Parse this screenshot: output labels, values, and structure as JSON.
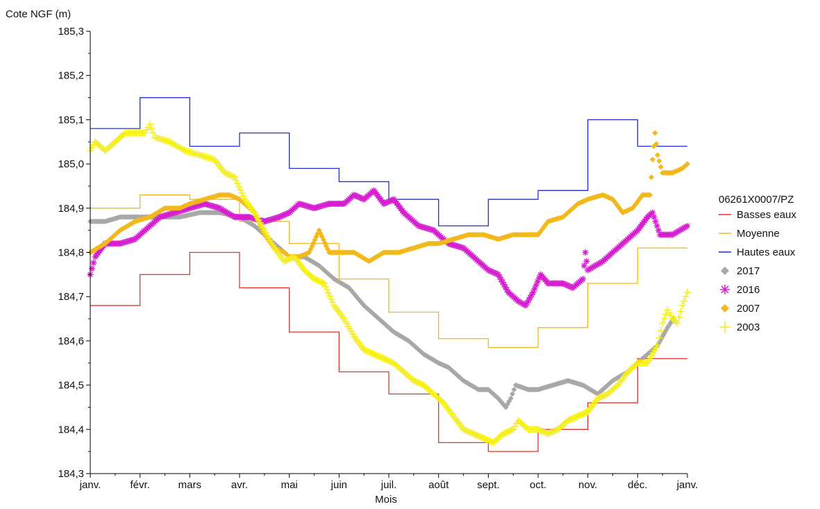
{
  "chart_data": {
    "type": "line",
    "ylabel": "Cote NGF (m)",
    "xlabel": "Mois",
    "ylim": [
      184.3,
      185.3
    ],
    "yticks": [
      184.3,
      184.4,
      184.5,
      184.6,
      184.7,
      184.8,
      184.9,
      185.0,
      185.1,
      185.2,
      185.3
    ],
    "ytick_labels": [
      "184,3",
      "184,4",
      "184,5",
      "184,6",
      "184,7",
      "184,8",
      "184,9",
      "185,0",
      "185,1",
      "185,2",
      "185,3"
    ],
    "xlim": [
      0,
      12
    ],
    "x_unit": "month",
    "xtick_labels": [
      "janv.",
      "févr.",
      "mars",
      "avr.",
      "mai",
      "juin",
      "juil.",
      "août",
      "sept.",
      "oct.",
      "nov.",
      "déc.",
      "janv."
    ],
    "grid": false,
    "legend_title": "06261X0007/PZ",
    "legend_position": "right",
    "series": [
      {
        "name": "Basses eaux",
        "kind": "step",
        "color": "#e8322a",
        "values": [
          184.68,
          184.75,
          184.8,
          184.72,
          184.62,
          184.53,
          184.48,
          184.37,
          184.35,
          184.4,
          184.46,
          184.56
        ]
      },
      {
        "name": "Moyenne",
        "kind": "step",
        "color": "#f0b81c",
        "values": [
          184.9,
          184.93,
          184.92,
          184.87,
          184.82,
          184.74,
          184.665,
          184.605,
          184.585,
          184.63,
          184.73,
          184.81
        ]
      },
      {
        "name": "Hautes eaux",
        "kind": "step",
        "color": "#1f2fd0",
        "values": [
          185.08,
          185.15,
          185.04,
          185.07,
          184.99,
          184.96,
          184.92,
          184.86,
          184.92,
          184.94,
          185.1,
          185.04
        ]
      },
      {
        "name": "2017",
        "kind": "marker",
        "marker": "diamond",
        "color": "#a8a8a8",
        "points": [
          [
            0.0,
            184.87
          ],
          [
            0.3,
            184.87
          ],
          [
            0.6,
            184.88
          ],
          [
            1.0,
            184.88
          ],
          [
            1.4,
            184.88
          ],
          [
            1.8,
            184.88
          ],
          [
            2.2,
            184.89
          ],
          [
            2.6,
            184.89
          ],
          [
            3.0,
            184.88
          ],
          [
            3.3,
            184.86
          ],
          [
            3.6,
            184.83
          ],
          [
            3.9,
            184.8
          ],
          [
            4.0,
            184.79
          ],
          [
            4.3,
            184.79
          ],
          [
            4.6,
            184.77
          ],
          [
            4.9,
            184.74
          ],
          [
            5.2,
            184.72
          ],
          [
            5.5,
            184.68
          ],
          [
            5.8,
            184.65
          ],
          [
            6.1,
            184.62
          ],
          [
            6.4,
            184.6
          ],
          [
            6.7,
            184.57
          ],
          [
            7.0,
            184.55
          ],
          [
            7.2,
            184.54
          ],
          [
            7.5,
            184.51
          ],
          [
            7.8,
            184.49
          ],
          [
            8.0,
            184.49
          ],
          [
            8.2,
            184.47
          ],
          [
            8.35,
            184.45
          ],
          [
            8.45,
            184.47
          ],
          [
            8.55,
            184.5
          ],
          [
            8.8,
            184.49
          ],
          [
            9.0,
            184.49
          ],
          [
            9.3,
            184.5
          ],
          [
            9.6,
            184.51
          ],
          [
            9.9,
            184.5
          ],
          [
            10.2,
            184.48
          ],
          [
            10.5,
            184.51
          ],
          [
            10.8,
            184.53
          ],
          [
            11.0,
            184.55
          ],
          [
            11.2,
            184.57
          ],
          [
            11.4,
            184.59
          ],
          [
            11.6,
            184.63
          ],
          [
            11.72,
            184.65
          ]
        ]
      },
      {
        "name": "2016",
        "kind": "marker",
        "marker": "asterisk",
        "color": "#d61fd0",
        "points": [
          [
            0.0,
            184.75
          ],
          [
            0.1,
            184.79
          ],
          [
            0.3,
            184.82
          ],
          [
            0.6,
            184.82
          ],
          [
            0.9,
            184.83
          ],
          [
            1.1,
            184.85
          ],
          [
            1.4,
            184.88
          ],
          [
            1.7,
            184.89
          ],
          [
            2.0,
            184.9
          ],
          [
            2.3,
            184.91
          ],
          [
            2.6,
            184.9
          ],
          [
            2.9,
            184.88
          ],
          [
            3.2,
            184.88
          ],
          [
            3.5,
            184.87
          ],
          [
            3.8,
            184.88
          ],
          [
            4.0,
            184.89
          ],
          [
            4.2,
            184.91
          ],
          [
            4.5,
            184.9
          ],
          [
            4.8,
            184.91
          ],
          [
            5.1,
            184.91
          ],
          [
            5.3,
            184.93
          ],
          [
            5.5,
            184.92
          ],
          [
            5.7,
            184.94
          ],
          [
            5.9,
            184.91
          ],
          [
            6.1,
            184.92
          ],
          [
            6.3,
            184.89
          ],
          [
            6.6,
            184.86
          ],
          [
            6.9,
            184.85
          ],
          [
            7.2,
            184.82
          ],
          [
            7.5,
            184.81
          ],
          [
            7.8,
            184.78
          ],
          [
            8.0,
            184.76
          ],
          [
            8.2,
            184.75
          ],
          [
            8.4,
            184.71
          ],
          [
            8.6,
            184.69
          ],
          [
            8.75,
            184.68
          ],
          [
            8.9,
            184.71
          ],
          [
            9.05,
            184.75
          ],
          [
            9.2,
            184.73
          ],
          [
            9.5,
            184.73
          ],
          [
            9.7,
            184.72
          ],
          [
            9.9,
            184.74
          ],
          [
            9.95,
            184.8
          ],
          [
            10.0,
            184.76
          ],
          [
            10.3,
            184.78
          ],
          [
            10.6,
            184.81
          ],
          [
            10.8,
            184.83
          ],
          [
            11.0,
            184.85
          ],
          [
            11.2,
            184.88
          ],
          [
            11.3,
            184.89
          ],
          [
            11.45,
            184.84
          ],
          [
            11.7,
            184.84
          ],
          [
            12.0,
            184.86
          ]
        ]
      },
      {
        "name": "2007",
        "kind": "marker",
        "marker": "diamond",
        "color": "#f2b81c",
        "points": [
          [
            0.0,
            184.8
          ],
          [
            0.3,
            184.82
          ],
          [
            0.6,
            184.85
          ],
          [
            0.9,
            184.87
          ],
          [
            1.2,
            184.88
          ],
          [
            1.5,
            184.9
          ],
          [
            1.8,
            184.9
          ],
          [
            2.0,
            184.91
          ],
          [
            2.3,
            184.92
          ],
          [
            2.6,
            184.93
          ],
          [
            2.8,
            184.93
          ],
          [
            3.0,
            184.92
          ],
          [
            3.3,
            184.89
          ],
          [
            3.5,
            184.84
          ],
          [
            3.7,
            184.81
          ],
          [
            3.9,
            184.8
          ],
          [
            4.0,
            184.79
          ],
          [
            4.2,
            184.79
          ],
          [
            4.4,
            184.8
          ],
          [
            4.6,
            184.85
          ],
          [
            4.8,
            184.8
          ],
          [
            5.0,
            184.8
          ],
          [
            5.3,
            184.8
          ],
          [
            5.6,
            184.78
          ],
          [
            5.9,
            184.8
          ],
          [
            6.2,
            184.8
          ],
          [
            6.5,
            184.81
          ],
          [
            6.8,
            184.82
          ],
          [
            7.0,
            184.82
          ],
          [
            7.3,
            184.83
          ],
          [
            7.6,
            184.84
          ],
          [
            7.9,
            184.84
          ],
          [
            8.2,
            184.83
          ],
          [
            8.5,
            184.84
          ],
          [
            8.8,
            184.84
          ],
          [
            9.0,
            184.84
          ],
          [
            9.2,
            184.87
          ],
          [
            9.5,
            184.88
          ],
          [
            9.8,
            184.91
          ],
          [
            10.0,
            184.92
          ],
          [
            10.3,
            184.93
          ],
          [
            10.5,
            184.92
          ],
          [
            10.7,
            184.89
          ],
          [
            10.9,
            184.9
          ],
          [
            11.1,
            184.93
          ],
          [
            11.25,
            184.93
          ],
          [
            11.3,
            185.01
          ],
          [
            11.35,
            185.07
          ],
          [
            11.4,
            185.02
          ],
          [
            11.5,
            184.98
          ],
          [
            11.7,
            184.98
          ],
          [
            11.9,
            184.99
          ],
          [
            12.0,
            185.0
          ]
        ]
      },
      {
        "name": "2003",
        "kind": "marker",
        "marker": "plus",
        "color": "#f5ef1a",
        "points": [
          [
            0.0,
            185.03
          ],
          [
            0.1,
            185.05
          ],
          [
            0.3,
            185.03
          ],
          [
            0.5,
            185.05
          ],
          [
            0.7,
            185.07
          ],
          [
            0.9,
            185.07
          ],
          [
            1.1,
            185.07
          ],
          [
            1.2,
            185.09
          ],
          [
            1.3,
            185.06
          ],
          [
            1.6,
            185.05
          ],
          [
            1.9,
            185.03
          ],
          [
            2.2,
            185.02
          ],
          [
            2.5,
            185.01
          ],
          [
            2.7,
            184.98
          ],
          [
            2.9,
            184.97
          ],
          [
            3.1,
            184.92
          ],
          [
            3.3,
            184.89
          ],
          [
            3.5,
            184.85
          ],
          [
            3.7,
            184.81
          ],
          [
            3.9,
            184.78
          ],
          [
            4.1,
            184.79
          ],
          [
            4.3,
            184.76
          ],
          [
            4.5,
            184.74
          ],
          [
            4.7,
            184.73
          ],
          [
            4.9,
            184.68
          ],
          [
            5.1,
            184.65
          ],
          [
            5.3,
            184.61
          ],
          [
            5.5,
            184.58
          ],
          [
            5.7,
            184.57
          ],
          [
            5.9,
            184.56
          ],
          [
            6.1,
            184.55
          ],
          [
            6.3,
            184.53
          ],
          [
            6.5,
            184.51
          ],
          [
            6.7,
            184.5
          ],
          [
            6.9,
            184.48
          ],
          [
            7.1,
            184.46
          ],
          [
            7.3,
            184.43
          ],
          [
            7.5,
            184.4
          ],
          [
            7.7,
            184.39
          ],
          [
            7.9,
            184.38
          ],
          [
            8.1,
            184.37
          ],
          [
            8.3,
            184.39
          ],
          [
            8.5,
            184.4
          ],
          [
            8.6,
            184.42
          ],
          [
            8.8,
            184.4
          ],
          [
            9.0,
            184.4
          ],
          [
            9.2,
            184.39
          ],
          [
            9.4,
            184.4
          ],
          [
            9.6,
            184.42
          ],
          [
            9.8,
            184.43
          ],
          [
            10.0,
            184.44
          ],
          [
            10.2,
            184.47
          ],
          [
            10.4,
            184.48
          ],
          [
            10.6,
            184.5
          ],
          [
            10.8,
            184.53
          ],
          [
            11.0,
            184.55
          ],
          [
            11.2,
            184.55
          ],
          [
            11.4,
            184.59
          ],
          [
            11.5,
            184.64
          ],
          [
            11.6,
            184.67
          ],
          [
            11.7,
            184.65
          ],
          [
            11.8,
            184.64
          ],
          [
            11.9,
            184.68
          ],
          [
            12.0,
            184.71
          ]
        ]
      }
    ]
  }
}
